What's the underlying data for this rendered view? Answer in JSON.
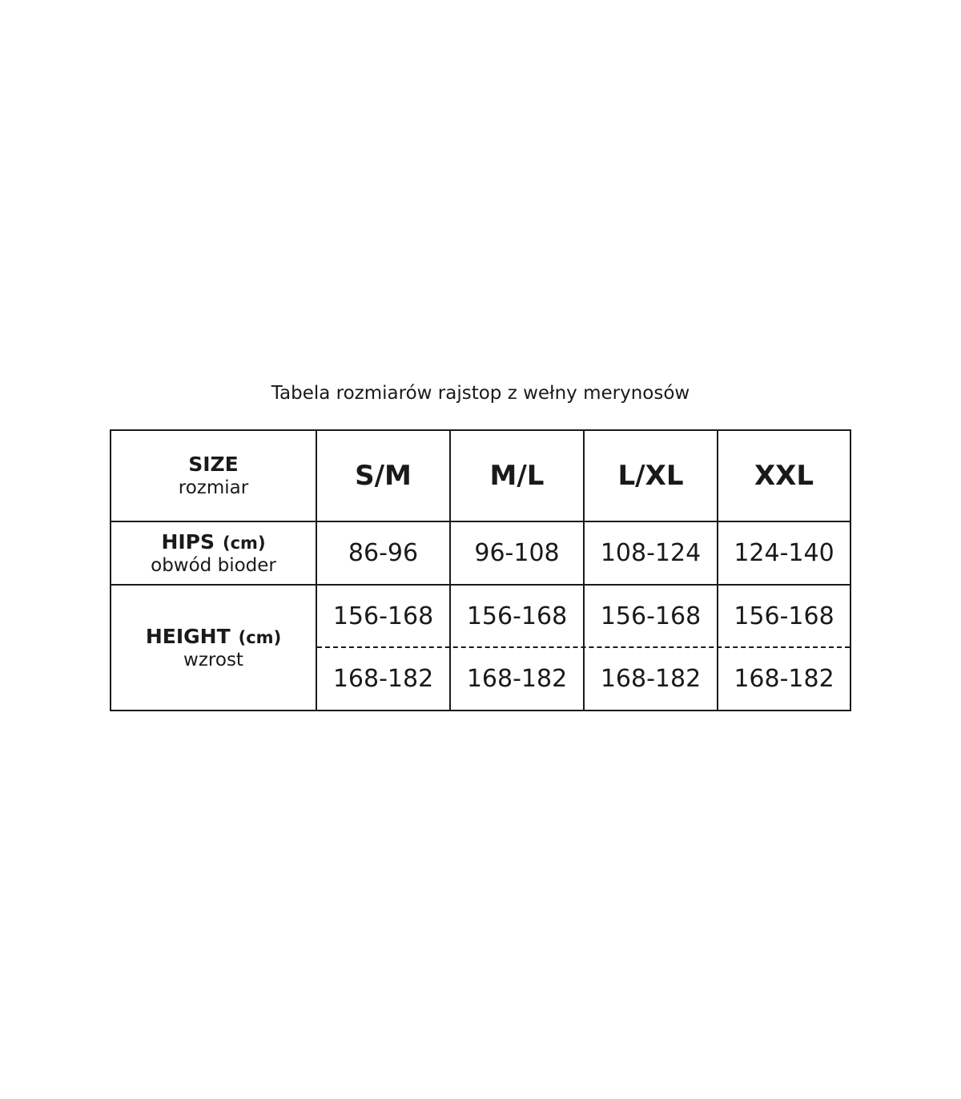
{
  "title": "Tabela rozmiarów rajstop z wełny merynosów",
  "header": {
    "label": "SIZE",
    "sublabel": "rozmiar",
    "sizes": [
      "S/M",
      "M/L",
      "L/XL",
      "XXL"
    ]
  },
  "hips": {
    "label": "HIPS",
    "unit": "(cm)",
    "sublabel": "obwód bioder",
    "values": [
      "86-96",
      "96-108",
      "108-124",
      "124-140"
    ]
  },
  "height": {
    "label": "HEIGHT",
    "unit": "(cm)",
    "sublabel": "wzrost",
    "row1": [
      "156-168",
      "156-168",
      "156-168",
      "156-168"
    ],
    "row2": [
      "168-182",
      "168-182",
      "168-182",
      "168-182"
    ]
  }
}
